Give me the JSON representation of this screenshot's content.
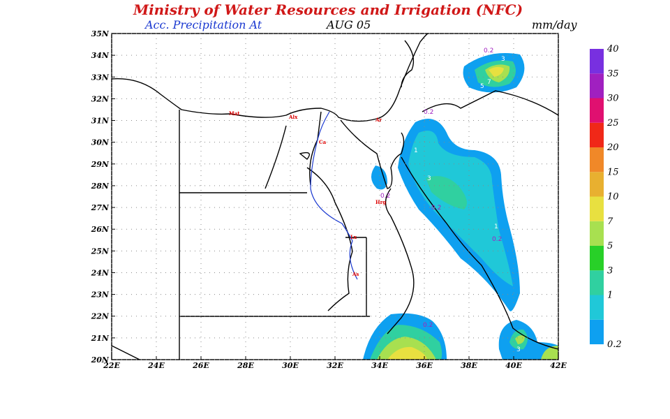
{
  "header": {
    "title": "Ministry of Water Resources and Irrigation (NFC)",
    "subtitle": "Acc. Precipitation  At",
    "date": "AUG 05",
    "unit": "mm/day"
  },
  "map": {
    "type": "map",
    "lonlim": [
      22,
      42
    ],
    "latlim": [
      20,
      35
    ],
    "grid": true,
    "lon_ticks": [
      {
        "value": 22,
        "label": "22E"
      },
      {
        "value": 24,
        "label": "24E"
      },
      {
        "value": 26,
        "label": "26E"
      },
      {
        "value": 28,
        "label": "28E"
      },
      {
        "value": 30,
        "label": "30E"
      },
      {
        "value": 32,
        "label": "32E"
      },
      {
        "value": 34,
        "label": "34E"
      },
      {
        "value": 36,
        "label": "36E"
      },
      {
        "value": 38,
        "label": "38E"
      },
      {
        "value": 40,
        "label": "40E"
      },
      {
        "value": 42,
        "label": "42E"
      }
    ],
    "lat_ticks": [
      {
        "value": 20,
        "label": "20N"
      },
      {
        "value": 21,
        "label": "21N"
      },
      {
        "value": 22,
        "label": "22N"
      },
      {
        "value": 23,
        "label": "23N"
      },
      {
        "value": 24,
        "label": "24N"
      },
      {
        "value": 25,
        "label": "25N"
      },
      {
        "value": 26,
        "label": "26N"
      },
      {
        "value": 27,
        "label": "27N"
      },
      {
        "value": 28,
        "label": "28N"
      },
      {
        "value": 29,
        "label": "29N"
      },
      {
        "value": 30,
        "label": "30N"
      },
      {
        "value": 31,
        "label": "31N"
      },
      {
        "value": 32,
        "label": "32N"
      },
      {
        "value": 33,
        "label": "33N"
      },
      {
        "value": 34,
        "label": "34N"
      },
      {
        "value": 35,
        "label": "35N"
      }
    ],
    "cities": [
      "Mat",
      "Alx",
      "Ar",
      "Ca",
      "Hrg",
      "Lx",
      "As"
    ],
    "contour_labels": [
      "0.2",
      "1",
      "3",
      "0.2",
      "0.2",
      "1",
      "0.2",
      "0.2",
      "3",
      "7",
      "5",
      "0.2",
      "3"
    ]
  },
  "colorbar": {
    "levels": [
      0.2,
      1,
      3,
      5,
      7,
      10,
      15,
      20,
      25,
      30,
      35,
      40
    ],
    "colors": [
      "#0ea0f0",
      "#20c8d8",
      "#30d0a0",
      "#28d028",
      "#a8e050",
      "#e8e040",
      "#e8b030",
      "#f08828",
      "#f02818",
      "#e01070",
      "#a020c0",
      "#7830e0"
    ]
  }
}
